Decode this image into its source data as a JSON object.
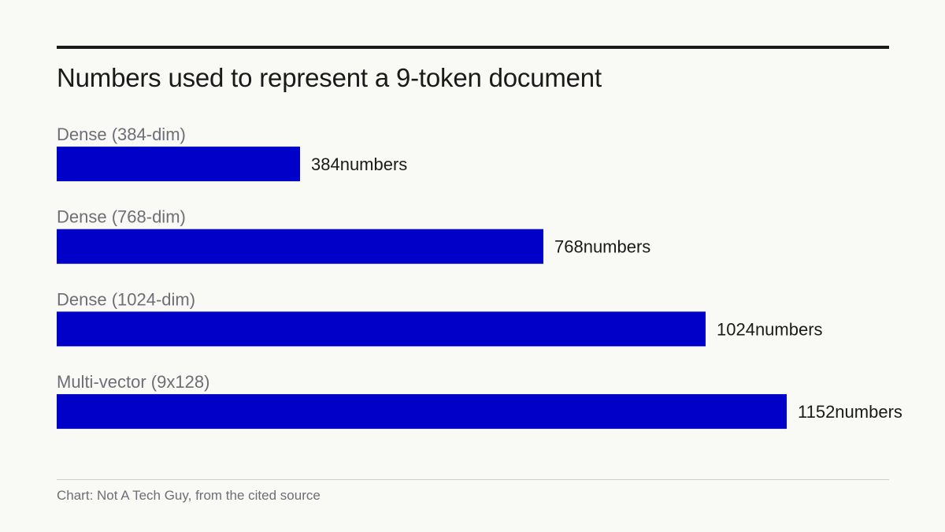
{
  "chart_data": {
    "type": "bar",
    "orientation": "horizontal",
    "title": "Numbers used to represent a 9-token document",
    "categories": [
      "Dense (384-dim)",
      "Dense (768-dim)",
      "Dense (1024-dim)",
      "Multi-vector (9x128)"
    ],
    "values": [
      384,
      768,
      1024,
      1152
    ],
    "value_suffix": "numbers",
    "xlim": [
      0,
      1152
    ],
    "grid": false,
    "bar_color": "#0000c8",
    "source": "Chart: Not A Tech Guy, from the cited source"
  }
}
